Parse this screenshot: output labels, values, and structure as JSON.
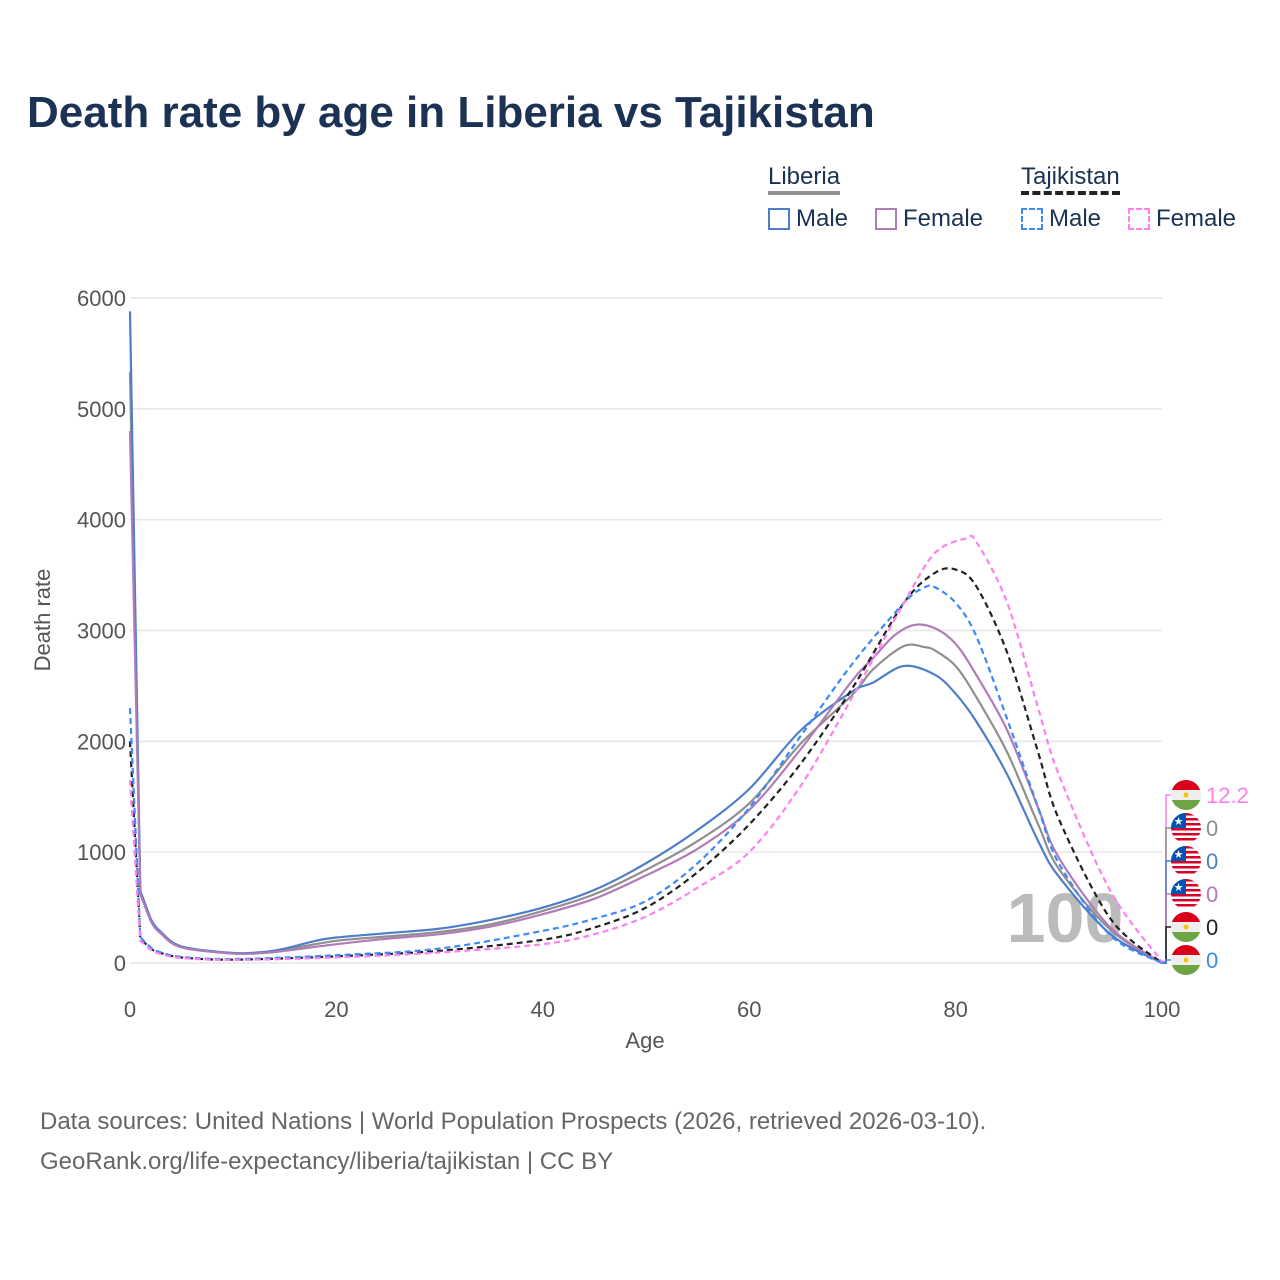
{
  "title": "Death rate by age in Liberia vs Tajikistan",
  "legend": {
    "liberia": "Liberia",
    "tajikistan": "Tajikistan",
    "male": "Male",
    "female": "Female"
  },
  "source1": "Data sources: United Nations | World Population Prospects (2026, retrieved 2026-03-10).",
  "source2": "GeoRank.org/life-expectancy/liberia/tajikistan | CC BY",
  "chart_data": {
    "type": "line",
    "title": "Death rate by age in Liberia vs Tajikistan",
    "xlabel": "Age",
    "ylabel": "Death rate",
    "xlim": [
      0,
      100
    ],
    "ylim": [
      0,
      6000
    ],
    "xticks": [
      0,
      20,
      40,
      60,
      80,
      100
    ],
    "yticks": [
      0,
      1000,
      2000,
      3000,
      4000,
      5000,
      6000
    ],
    "watermark": "100",
    "series": [
      {
        "name": "Liberia (both)",
        "color": "#8f8f8f",
        "dash": false,
        "end_label": "0",
        "flag": "liberia",
        "x": [
          0,
          1,
          2,
          3,
          5,
          10,
          13,
          15,
          20,
          25,
          30,
          35,
          40,
          45,
          50,
          55,
          60,
          65,
          70,
          72,
          75,
          77,
          78,
          80,
          82,
          85,
          88,
          90,
          95,
          100
        ],
        "y": [
          5330,
          640,
          390,
          270,
          145,
          85,
          95,
          120,
          200,
          240,
          280,
          350,
          470,
          620,
          840,
          1100,
          1440,
          1980,
          2420,
          2650,
          2860,
          2850,
          2820,
          2680,
          2400,
          1900,
          1250,
          850,
          300,
          0
        ]
      },
      {
        "name": "Liberia Male",
        "color": "#4f7ec9",
        "dash": false,
        "end_label": "0",
        "flag": "liberia",
        "x": [
          0,
          1,
          2,
          3,
          5,
          10,
          13,
          15,
          18,
          20,
          25,
          30,
          35,
          40,
          45,
          50,
          55,
          60,
          65,
          70,
          72,
          75,
          78,
          80,
          82,
          85,
          88,
          90,
          95,
          100
        ],
        "y": [
          5880,
          650,
          400,
          280,
          150,
          90,
          100,
          130,
          200,
          230,
          270,
          310,
          390,
          500,
          660,
          900,
          1200,
          1570,
          2100,
          2450,
          2530,
          2680,
          2600,
          2430,
          2180,
          1700,
          1100,
          780,
          260,
          0
        ]
      },
      {
        "name": "Liberia Female",
        "color": "#b07cb8",
        "dash": false,
        "end_label": "0",
        "flag": "liberia",
        "x": [
          0,
          1,
          2,
          3,
          5,
          10,
          13,
          15,
          20,
          25,
          30,
          35,
          40,
          45,
          50,
          55,
          60,
          65,
          70,
          72,
          74,
          76,
          78,
          80,
          82,
          85,
          88,
          90,
          95,
          100
        ],
        "y": [
          4800,
          620,
          380,
          265,
          140,
          85,
          90,
          110,
          170,
          220,
          260,
          330,
          440,
          580,
          790,
          1030,
          1380,
          1930,
          2550,
          2750,
          2950,
          3050,
          3020,
          2880,
          2600,
          2100,
          1400,
          950,
          320,
          0
        ]
      },
      {
        "name": "Tajikistan (both)",
        "color": "#222222",
        "dash": true,
        "end_label": "0",
        "flag": "tajikistan",
        "x": [
          0,
          1,
          2,
          3,
          5,
          10,
          20,
          30,
          40,
          45,
          50,
          55,
          60,
          65,
          70,
          75,
          78,
          80,
          82,
          85,
          88,
          90,
          95,
          100
        ],
        "y": [
          2000,
          220,
          130,
          90,
          50,
          30,
          60,
          110,
          210,
          320,
          500,
          820,
          1250,
          1800,
          2480,
          3250,
          3520,
          3550,
          3400,
          2800,
          1900,
          1300,
          400,
          0
        ]
      },
      {
        "name": "Tajikistan Male",
        "color": "#3d8af7",
        "dash": true,
        "end_label": "0",
        "flag": "tajikistan",
        "x": [
          0,
          1,
          2,
          3,
          5,
          10,
          20,
          30,
          40,
          45,
          50,
          55,
          60,
          65,
          70,
          75,
          77,
          78,
          80,
          82,
          85,
          88,
          90,
          95,
          100
        ],
        "y": [
          2300,
          230,
          140,
          95,
          55,
          35,
          70,
          130,
          290,
          400,
          560,
          900,
          1400,
          2050,
          2700,
          3250,
          3390,
          3390,
          3250,
          2950,
          2200,
          1400,
          900,
          250,
          0
        ]
      },
      {
        "name": "Tajikistan Female",
        "color": "#ff80ee",
        "dash": true,
        "end_label": "12.2",
        "flag": "tajikistan",
        "x": [
          0,
          1,
          2,
          3,
          5,
          10,
          20,
          30,
          40,
          45,
          50,
          55,
          60,
          65,
          70,
          75,
          78,
          81,
          82,
          85,
          88,
          90,
          95,
          100
        ],
        "y": [
          1650,
          200,
          120,
          80,
          45,
          28,
          50,
          95,
          170,
          260,
          420,
          680,
          1000,
          1600,
          2400,
          3250,
          3700,
          3830,
          3800,
          3250,
          2300,
          1700,
          650,
          12
        ]
      }
    ]
  }
}
